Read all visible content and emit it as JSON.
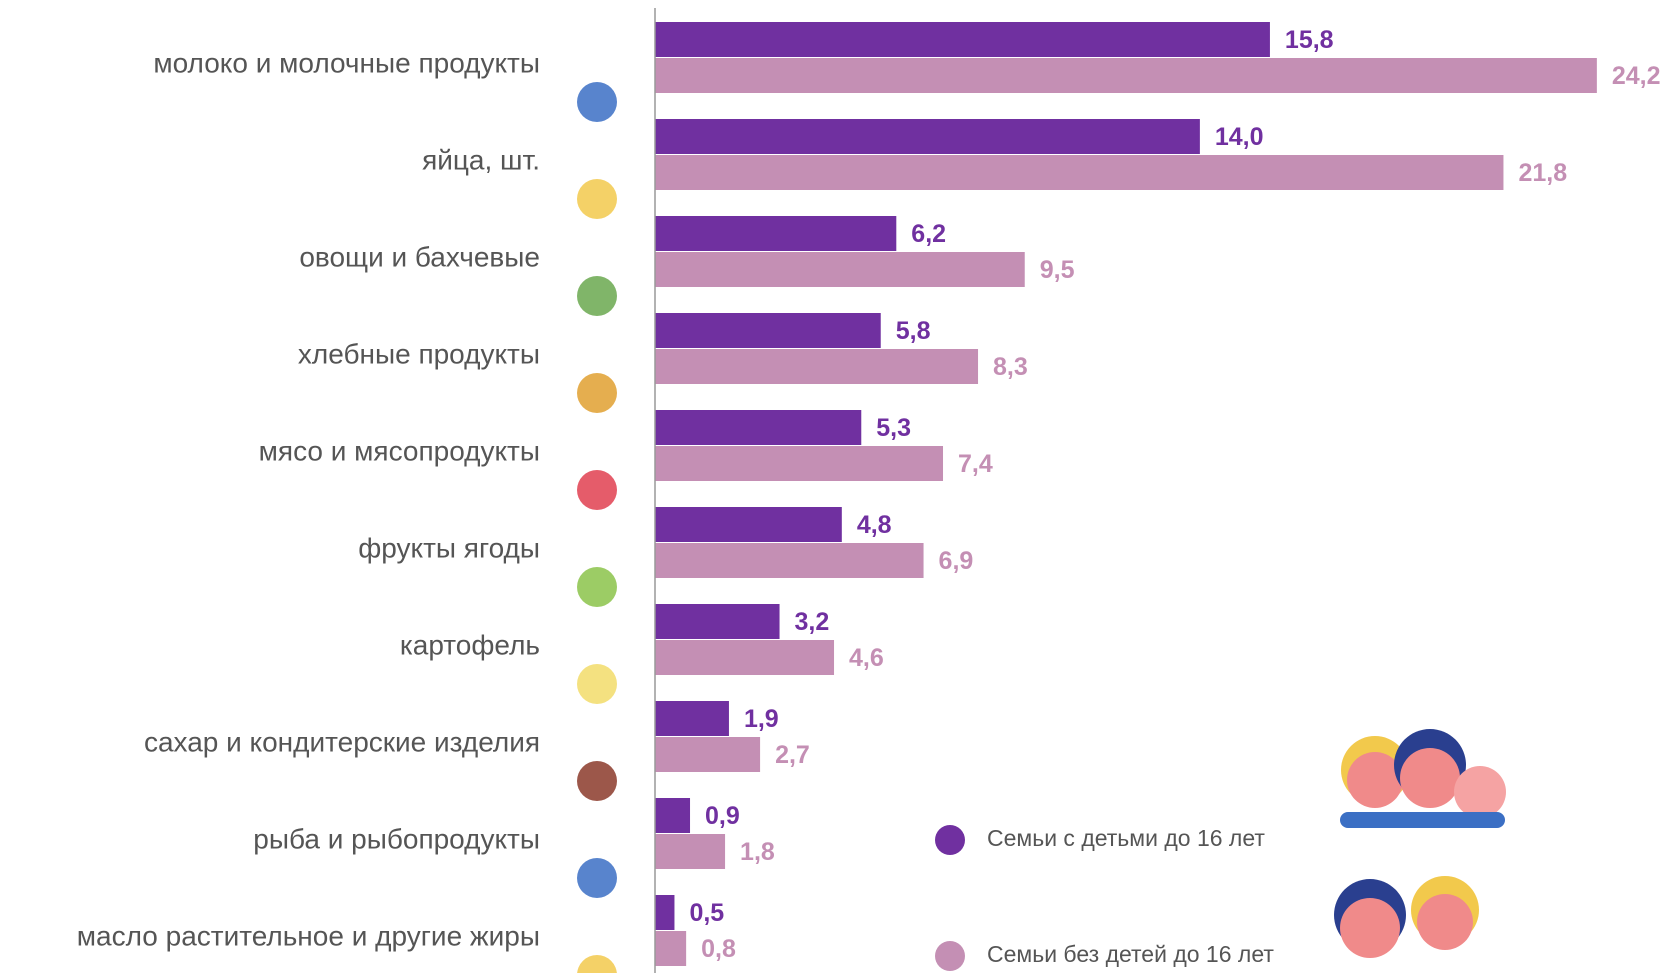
{
  "chart_data": {
    "type": "hbar",
    "categories": [
      "молоко и молочные продукты",
      "яйца, шт.",
      "овощи и бахчевые",
      "хлебные продукты",
      "мясо и мясопродукты",
      "фрукты ягоды",
      "картофель",
      "сахар и кондитерские изделия",
      "рыба и рыбопродукты",
      "масло растительное и другие жиры"
    ],
    "series": [
      {
        "name": "Семьи с детьми до 16 лет",
        "color": "#7030a0",
        "values": [
          15.8,
          14.0,
          6.2,
          5.8,
          5.3,
          4.8,
          3.2,
          1.9,
          0.9,
          0.5
        ],
        "value_labels": [
          "15,8",
          "14,0",
          "6,2",
          "5,8",
          "5,3",
          "4,8",
          "3,2",
          "1,9",
          "0,9",
          "0,5"
        ]
      },
      {
        "name": "Семьи без детей до 16 лет",
        "color": "#c48fb4",
        "values": [
          24.2,
          21.8,
          9.5,
          8.3,
          7.4,
          6.9,
          4.6,
          2.7,
          1.8,
          0.8
        ],
        "value_labels": [
          "24,2",
          "21,8",
          "9,5",
          "8,3",
          "7,4",
          "6,9",
          "4,6",
          "2,7",
          "1,8",
          "0,8"
        ]
      }
    ],
    "xlim": [
      0,
      25
    ]
  }
}
